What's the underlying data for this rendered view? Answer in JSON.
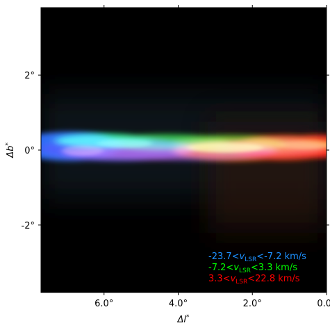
{
  "chart_data": {
    "type": "heatmap",
    "title": "",
    "xlabel": "Δl*",
    "ylabel": "Δb*",
    "xlim": [
      7.7,
      0.0
    ],
    "ylim": [
      -3.8,
      3.8
    ],
    "x_ticks": [
      {
        "value": 6.0,
        "label": "6.0°"
      },
      {
        "value": 4.0,
        "label": "4.0°"
      },
      {
        "value": 2.0,
        "label": "2.0°"
      },
      {
        "value": 0.0,
        "label": "0.0°"
      }
    ],
    "y_ticks": [
      {
        "value": 2,
        "label": "2°"
      },
      {
        "value": 0,
        "label": "0°"
      },
      {
        "value": -2,
        "label": "-2°"
      }
    ],
    "grid": false,
    "legend_position": "bottom-right",
    "background_color": "#000000",
    "series": [
      {
        "name": "-23.7<v_LSR<-7.2 km/s",
        "prefix": "-23.7<",
        "symbol": "v",
        "sub": "LSR",
        "suffix": "<-7.2 km/s",
        "color": "#1e90ff",
        "channel": "blue"
      },
      {
        "name": "-7.2<v_LSR<3.3 km/s",
        "prefix": "-7.2<",
        "symbol": "v",
        "sub": "LSR",
        "suffix": "<3.3 km/s",
        "color": "#00ff00",
        "channel": "green"
      },
      {
        "name": "3.3<v_LSR<22.8 km/s",
        "prefix": "3.3<",
        "symbol": "v",
        "sub": "LSR",
        "suffix": "<22.8 km/s",
        "color": "#ff0000",
        "channel": "red"
      }
    ],
    "emission_band": {
      "b_center": 0.1,
      "b_halfwidth": 0.35
    }
  }
}
